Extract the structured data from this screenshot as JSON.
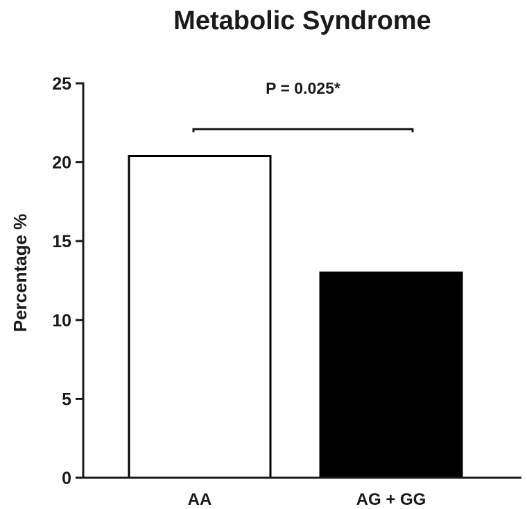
{
  "chart_data": {
    "type": "bar",
    "title": "Metabolic Syndrome",
    "xlabel": "",
    "ylabel": "Percentage %",
    "ylim": [
      0,
      25
    ],
    "yticks": [
      0,
      5,
      10,
      15,
      20,
      25
    ],
    "ytick_labels": [
      "0",
      "5",
      "10",
      "15",
      "20",
      "25"
    ],
    "categories": [
      "AA",
      "AG + GG"
    ],
    "values": [
      20.4,
      13.0
    ],
    "bar_fill_colors": [
      "#ffffff",
      "#000000"
    ],
    "bar_edge_color": "#000000",
    "grid": false,
    "annotation": {
      "text": "P = 0.025*",
      "type": "significance-bracket",
      "between": [
        "AA",
        "AG + GG"
      ],
      "level": 22.1,
      "tick_bottom": 21.9
    }
  }
}
